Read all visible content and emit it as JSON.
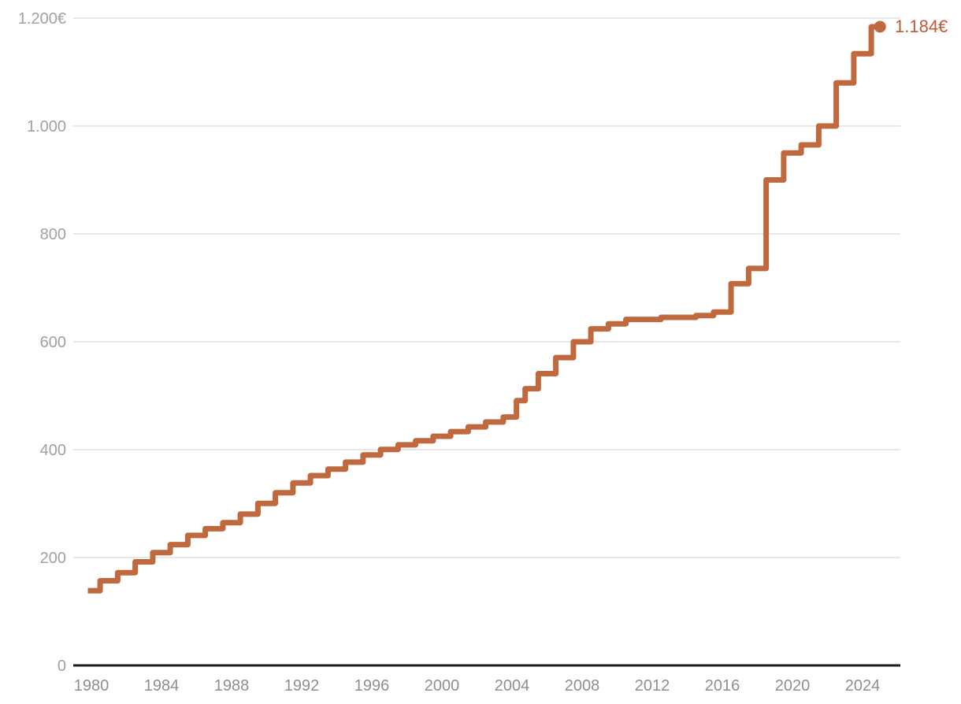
{
  "chart_data": {
    "type": "line",
    "subtype": "step",
    "title": "",
    "xlabel": "",
    "ylabel": "",
    "unit": "€",
    "x_range": [
      1980,
      2025
    ],
    "ylim": [
      0,
      1200
    ],
    "grid": "horizontal",
    "legend_position": "none",
    "end_label": "1.184€",
    "y_ticks": [
      {
        "value": 1200,
        "label": "1.200€"
      },
      {
        "value": 1000,
        "label": "1.000"
      },
      {
        "value": 800,
        "label": "800"
      },
      {
        "value": 600,
        "label": "600"
      },
      {
        "value": 400,
        "label": "400"
      },
      {
        "value": 200,
        "label": "200"
      },
      {
        "value": 0,
        "label": "0"
      }
    ],
    "x_ticks": [
      {
        "year": 1980,
        "label": "1980"
      },
      {
        "year": 1984,
        "label": "1984"
      },
      {
        "year": 1988,
        "label": "1988"
      },
      {
        "year": 1992,
        "label": "1992"
      },
      {
        "year": 1996,
        "label": "1996"
      },
      {
        "year": 2000,
        "label": "2000"
      },
      {
        "year": 2004,
        "label": "2004"
      },
      {
        "year": 2008,
        "label": "2008"
      },
      {
        "year": 2012,
        "label": "2012"
      },
      {
        "year": 2016,
        "label": "2016"
      },
      {
        "year": 2020,
        "label": "2020"
      },
      {
        "year": 2024,
        "label": "2024"
      }
    ],
    "points": [
      {
        "year": 1980,
        "value": 138.5
      },
      {
        "year": 1981,
        "value": 157
      },
      {
        "year": 1982,
        "value": 172
      },
      {
        "year": 1983,
        "value": 192
      },
      {
        "year": 1984,
        "value": 209
      },
      {
        "year": 1985,
        "value": 224
      },
      {
        "year": 1986,
        "value": 241
      },
      {
        "year": 1987,
        "value": 253.5
      },
      {
        "year": 1988,
        "value": 264.7
      },
      {
        "year": 1989,
        "value": 280.5
      },
      {
        "year": 1990,
        "value": 300.5
      },
      {
        "year": 1991,
        "value": 320
      },
      {
        "year": 1992,
        "value": 338.3
      },
      {
        "year": 1993,
        "value": 351.8
      },
      {
        "year": 1994,
        "value": 364
      },
      {
        "year": 1995,
        "value": 376.8
      },
      {
        "year": 1996,
        "value": 390.2
      },
      {
        "year": 1997,
        "value": 400.5
      },
      {
        "year": 1998,
        "value": 408.9
      },
      {
        "year": 1999,
        "value": 416.3
      },
      {
        "year": 2000,
        "value": 424.8
      },
      {
        "year": 2001,
        "value": 433.5
      },
      {
        "year": 2002,
        "value": 442.2
      },
      {
        "year": 2003,
        "value": 451.2
      },
      {
        "year": 2004,
        "value": 460.5
      },
      {
        "year": 2004.5,
        "value": 490.8
      },
      {
        "year": 2005,
        "value": 513
      },
      {
        "year": 2006,
        "value": 540.9
      },
      {
        "year": 2007,
        "value": 570.6
      },
      {
        "year": 2008,
        "value": 600
      },
      {
        "year": 2009,
        "value": 624
      },
      {
        "year": 2010,
        "value": 633.3
      },
      {
        "year": 2011,
        "value": 641.4
      },
      {
        "year": 2012,
        "value": 641.4
      },
      {
        "year": 2013,
        "value": 645.3
      },
      {
        "year": 2014,
        "value": 645.3
      },
      {
        "year": 2015,
        "value": 648.6
      },
      {
        "year": 2016,
        "value": 655.2
      },
      {
        "year": 2017,
        "value": 707.7
      },
      {
        "year": 2018,
        "value": 735.9
      },
      {
        "year": 2019,
        "value": 900
      },
      {
        "year": 2020,
        "value": 950
      },
      {
        "year": 2021,
        "value": 965
      },
      {
        "year": 2022,
        "value": 1000
      },
      {
        "year": 2023,
        "value": 1080
      },
      {
        "year": 2024,
        "value": 1134
      },
      {
        "year": 2025,
        "value": 1184
      }
    ],
    "colors": {
      "line": "#c0693f",
      "end_dot": "#c0693f",
      "end_label": "#c05a31",
      "grid": "#e7e7e7",
      "axis": "#1b1b1b",
      "y_tick_text": "#a1a1a1",
      "x_tick_text": "#8f8f8f",
      "background": "#ffffff"
    }
  }
}
